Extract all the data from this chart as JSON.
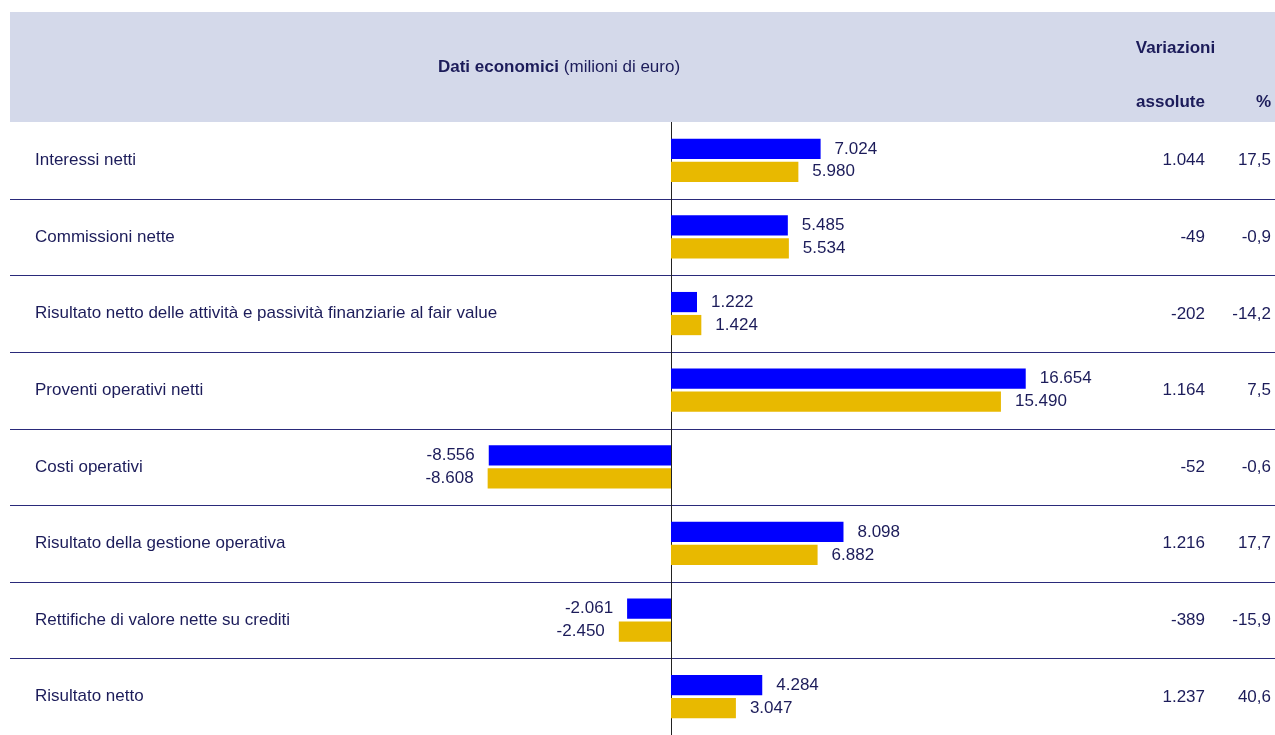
{
  "chart_data": [
    {
      "type": "bar",
      "orientation": "horizontal",
      "title": "Dati economici",
      "subtitle": "(milioni di euro)",
      "categories": [
        "Interessi netti",
        "Commissioni nette",
        "Risultato netto delle attività e passività finanziarie al fair value",
        "Proventi operativi netti",
        "Costi operativi",
        "Risultato della gestione operativa",
        "Rettifiche di valore nette su crediti",
        "Risultato netto"
      ],
      "series": [
        {
          "color": "#0000ff",
          "values": [
            7024,
            5485,
            1222,
            16654,
            -8556,
            8098,
            -2061,
            4284
          ],
          "value_labels": [
            "7.024",
            "5.485",
            "1.222",
            "16.654",
            "-8.556",
            "8.098",
            "-2.061",
            "4.284"
          ]
        },
        {
          "color": "#e8b900",
          "values": [
            5980,
            5534,
            1424,
            15490,
            -8608,
            6882,
            -2450,
            3047
          ],
          "value_labels": [
            "5.980",
            "5.534",
            "1.424",
            "15.490",
            "-8.608",
            "6.882",
            "-2.450",
            "3.047"
          ]
        }
      ],
      "tick_labels": "y",
      "grid": "y"
    },
    {
      "type": "other",
      "title": "Variazioni",
      "categories": [
        "assolute",
        "%"
      ],
      "annotations": [
        "1.044",
        "17,5",
        "-49",
        "-0,9",
        "-202",
        "-14,2",
        "1.164",
        "7,5",
        "-52",
        "-0,6",
        "1.216",
        "17,7",
        "-389",
        "-15,9",
        "1.237",
        "40,6"
      ]
    }
  ]
}
